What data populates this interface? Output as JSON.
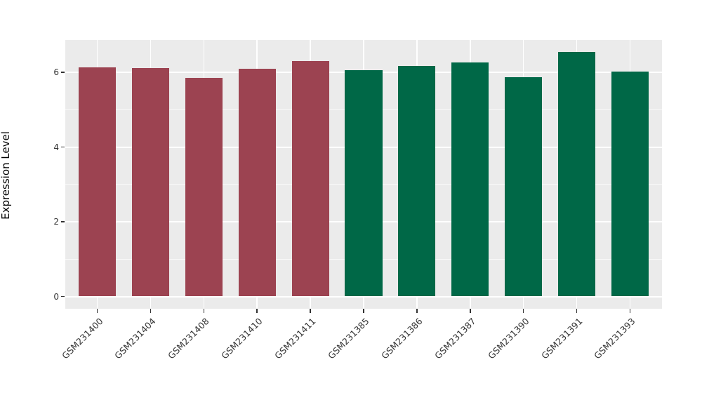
{
  "chart_data": {
    "type": "bar",
    "title": "",
    "xlabel": "",
    "ylabel": "Expression Level",
    "categories": [
      "GSM231400",
      "GSM231404",
      "GSM231408",
      "GSM231410",
      "GSM231411",
      "GSM231385",
      "GSM231386",
      "GSM231387",
      "GSM231390",
      "GSM231391",
      "GSM231393"
    ],
    "values": [
      6.13,
      6.11,
      5.85,
      6.09,
      6.3,
      6.06,
      6.17,
      6.26,
      5.87,
      6.54,
      6.02
    ],
    "bar_colors": [
      "#9C4351",
      "#9C4351",
      "#9C4351",
      "#9C4351",
      "#9C4351",
      "#006847",
      "#006847",
      "#006847",
      "#006847",
      "#006847",
      "#006847"
    ],
    "groups": [
      {
        "color": "#9C4351",
        "categories": [
          "GSM231400",
          "GSM231404",
          "GSM231408",
          "GSM231410",
          "GSM231411"
        ]
      },
      {
        "color": "#006847",
        "categories": [
          "GSM231385",
          "GSM231386",
          "GSM231387",
          "GSM231390",
          "GSM231391",
          "GSM231393"
        ]
      }
    ],
    "yticks_major": [
      0,
      2,
      4,
      6
    ],
    "yticks_minor": [
      1,
      3,
      5
    ],
    "ylim": [
      -0.33,
      6.89
    ],
    "x_tick_rotation_deg": 45,
    "legend_position": "none",
    "grid": "on",
    "style": {
      "panel_background": "#EBEBEB",
      "gridline_color": "#FFFFFF",
      "tick_color": "#333333",
      "tick_label_color": "#333333",
      "axis_title_color": "#000000"
    }
  }
}
